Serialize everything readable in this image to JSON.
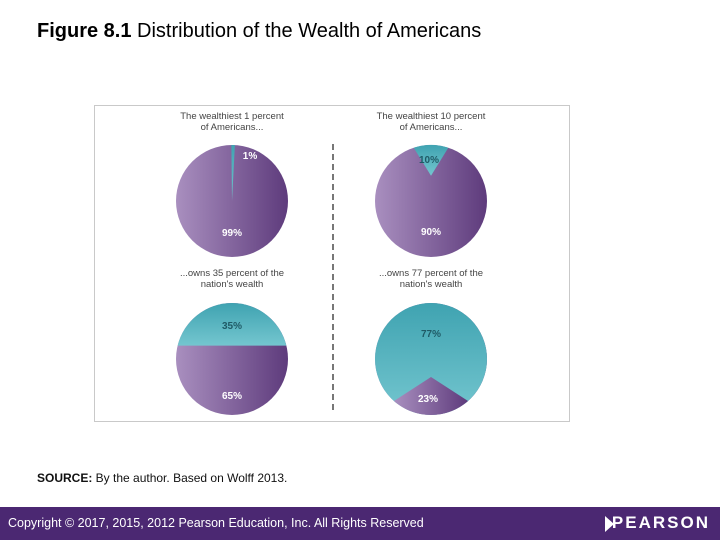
{
  "slide": {
    "title_bold": "Figure 8.1",
    "title_rest": " Distribution of the Wealth of Americans"
  },
  "source": {
    "label": "SOURCE:",
    "text": " By the author. Based on Wolff 2013."
  },
  "footer": {
    "copyright": "Copyright © 2017, 2015, 2012 Pearson Education, Inc. All Rights Reserved",
    "logo_text": "PEARSON",
    "background_color": "#4b2872"
  },
  "colors": {
    "purple": "#7a5494",
    "teal": "#5dbcc6",
    "caption": "#444444"
  },
  "chart_data": [
    {
      "type": "pie",
      "caption": [
        "The wealthiest 1 percent",
        "of Americans..."
      ],
      "slices": [
        {
          "label": "1%",
          "value": 1,
          "color": "teal"
        },
        {
          "label": "99%",
          "value": 99,
          "color": "purple"
        }
      ]
    },
    {
      "type": "pie",
      "caption": [
        "The wealthiest 10 percent",
        "of Americans..."
      ],
      "slices": [
        {
          "label": "10%",
          "value": 10,
          "color": "teal"
        },
        {
          "label": "90%",
          "value": 90,
          "color": "purple"
        }
      ]
    },
    {
      "type": "pie",
      "caption": [
        "...owns 35 percent of the",
        "nation's wealth"
      ],
      "slices": [
        {
          "label": "35%",
          "value": 35,
          "color": "teal"
        },
        {
          "label": "65%",
          "value": 65,
          "color": "purple"
        }
      ]
    },
    {
      "type": "pie",
      "caption": [
        "...owns 77 percent of the",
        "nation's wealth"
      ],
      "slices": [
        {
          "label": "77%",
          "value": 77,
          "color": "teal"
        },
        {
          "label": "23%",
          "value": 23,
          "color": "purple"
        }
      ]
    }
  ]
}
